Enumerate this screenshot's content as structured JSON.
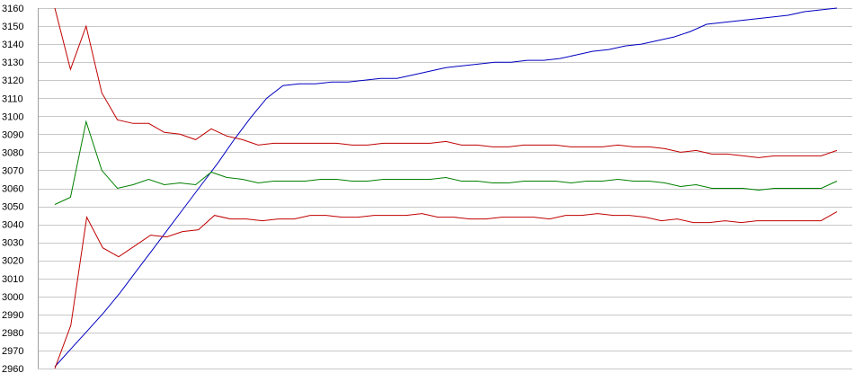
{
  "chart_data": {
    "type": "line",
    "title": "",
    "xlabel": "",
    "ylabel": "",
    "ylim": [
      2960,
      3160
    ],
    "y_ticks": [
      2960,
      2970,
      2980,
      2990,
      3000,
      3010,
      3020,
      3030,
      3040,
      3050,
      3060,
      3070,
      3080,
      3090,
      3100,
      3110,
      3120,
      3130,
      3140,
      3150,
      3160
    ],
    "grid": true,
    "legend": "none",
    "series": [
      {
        "color": "#0000c0",
        "values": [
          2961,
          2971,
          2981,
          2991,
          3002,
          3014,
          3026,
          3038,
          3050,
          3062,
          3074,
          3087,
          3099,
          3110,
          3117,
          3118,
          3118,
          3119,
          3119,
          3120,
          3121,
          3121,
          3123,
          3125,
          3127,
          3128,
          3129,
          3130,
          3130,
          3131,
          3131,
          3132,
          3134,
          3136,
          3137,
          3139,
          3140,
          3142,
          3144,
          3147,
          3151,
          3152,
          3153,
          3154,
          3155,
          3156,
          3158,
          3159,
          3160
        ]
      },
      {
        "color": "#c00000",
        "values": [
          3160,
          3126,
          3150,
          3113,
          3098,
          3096,
          3096,
          3091,
          3090,
          3087,
          3093,
          3089,
          3087,
          3084,
          3085,
          3085,
          3085,
          3085,
          3085,
          3084,
          3084,
          3085,
          3085,
          3085,
          3085,
          3086,
          3084,
          3084,
          3083,
          3083,
          3084,
          3084,
          3084,
          3083,
          3083,
          3083,
          3084,
          3083,
          3083,
          3082,
          3080,
          3081,
          3079,
          3079,
          3078,
          3077,
          3078,
          3078,
          3078,
          3078,
          3081
        ]
      },
      {
        "color": "#008000",
        "values": [
          3051,
          3055,
          3097,
          3070,
          3060,
          3062,
          3065,
          3062,
          3063,
          3062,
          3069,
          3066,
          3065,
          3063,
          3064,
          3064,
          3064,
          3065,
          3065,
          3064,
          3064,
          3065,
          3065,
          3065,
          3065,
          3066,
          3064,
          3064,
          3063,
          3063,
          3064,
          3064,
          3064,
          3063,
          3064,
          3064,
          3065,
          3064,
          3064,
          3063,
          3061,
          3062,
          3060,
          3060,
          3060,
          3059,
          3060,
          3060,
          3060,
          3060,
          3064
        ]
      },
      {
        "color": "#c00000",
        "values": [
          2960,
          2984,
          3044,
          3027,
          3022,
          3028,
          3034,
          3033,
          3036,
          3037,
          3045,
          3043,
          3043,
          3042,
          3043,
          3043,
          3045,
          3045,
          3044,
          3044,
          3045,
          3045,
          3045,
          3046,
          3044,
          3044,
          3043,
          3043,
          3044,
          3044,
          3044,
          3043,
          3045,
          3045,
          3046,
          3045,
          3045,
          3044,
          3042,
          3043,
          3041,
          3041,
          3042,
          3041,
          3042,
          3042,
          3042,
          3042,
          3042,
          3047
        ]
      }
    ]
  }
}
